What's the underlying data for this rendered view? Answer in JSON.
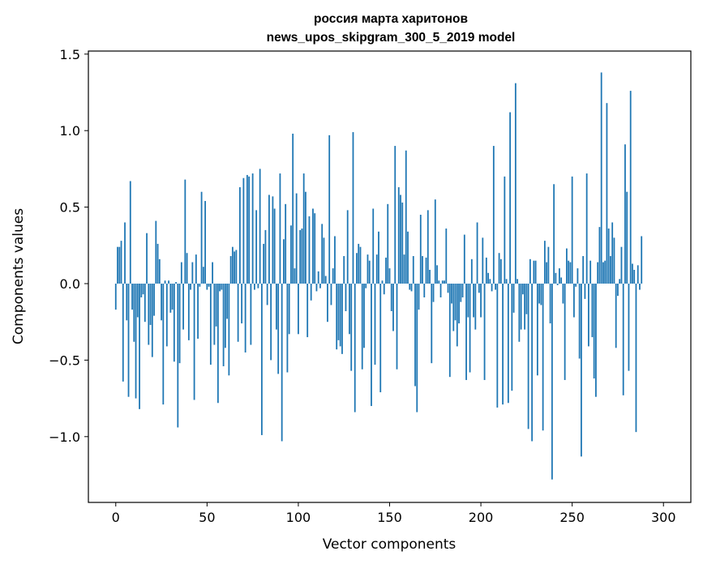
{
  "chart_data": {
    "type": "bar",
    "title": "россия марта харитонов",
    "subtitle": "news_upos_skipgram_300_5_2019 model",
    "xlabel": "Vector components",
    "ylabel": "Components values",
    "xlim": [
      -15,
      315
    ],
    "ylim": [
      -1.43,
      1.52
    ],
    "xticks": [
      0,
      50,
      100,
      150,
      200,
      250,
      300
    ],
    "xtick_labels": [
      "0",
      "50",
      "100",
      "150",
      "200",
      "250",
      "300"
    ],
    "yticks": [
      -1.0,
      -0.5,
      0.0,
      0.5,
      1.0,
      1.5
    ],
    "ytick_labels": [
      "−1.0",
      "−0.5",
      "0.0",
      "0.5",
      "1.0",
      "1.5"
    ],
    "grid": false,
    "bar_color": "#1f77b4",
    "values": [
      -0.17,
      0.24,
      0.24,
      0.28,
      -0.64,
      0.4,
      -0.24,
      -0.74,
      0.67,
      -0.17,
      -0.38,
      -0.75,
      -0.22,
      -0.82,
      -0.09,
      -0.07,
      -0.25,
      0.33,
      -0.4,
      -0.27,
      -0.48,
      -0.21,
      0.41,
      0.26,
      0.16,
      -0.24,
      -0.79,
      0.02,
      -0.41,
      0.02,
      -0.19,
      -0.17,
      -0.51,
      0.01,
      -0.94,
      -0.52,
      0.14,
      -0.3,
      0.68,
      0.2,
      -0.37,
      -0.04,
      0.14,
      -0.76,
      0.19,
      -0.36,
      -0.02,
      0.6,
      0.11,
      0.54,
      -0.04,
      -0.02,
      -0.53,
      0.14,
      -0.4,
      -0.28,
      -0.78,
      -0.05,
      -0.04,
      -0.54,
      -0.42,
      -0.23,
      -0.6,
      0.18,
      0.24,
      0.21,
      0.22,
      -0.38,
      0.63,
      -0.26,
      0.69,
      -0.45,
      0.71,
      0.7,
      -0.4,
      0.72,
      -0.04,
      0.48,
      -0.03,
      0.75,
      -0.99,
      0.26,
      0.35,
      -0.14,
      0.58,
      -0.5,
      0.57,
      0.49,
      -0.3,
      -0.59,
      0.72,
      -1.03,
      0.29,
      0.52,
      -0.58,
      -0.33,
      0.38,
      0.98,
      0.1,
      0.59,
      -0.33,
      0.35,
      0.36,
      0.72,
      0.6,
      -0.35,
      0.44,
      -0.11,
      0.49,
      0.46,
      -0.05,
      0.08,
      -0.03,
      0.39,
      0.3,
      0.05,
      -0.25,
      0.97,
      -0.14,
      0.1,
      0.31,
      -0.43,
      -0.37,
      -0.41,
      -0.46,
      0.18,
      -0.18,
      0.48,
      -0.33,
      -0.57,
      0.99,
      -0.84,
      0.2,
      0.26,
      0.24,
      -0.56,
      -0.42,
      -0.03,
      0.19,
      0.15,
      -0.8,
      0.49,
      -0.53,
      0.19,
      0.34,
      -0.71,
      0.02,
      -0.07,
      0.17,
      0.52,
      0.1,
      -0.18,
      -0.31,
      0.9,
      -0.56,
      0.63,
      0.58,
      0.53,
      0.19,
      0.87,
      0.34,
      -0.04,
      -0.05,
      0.18,
      -0.67,
      -0.84,
      -0.17,
      0.45,
      0.18,
      -0.09,
      0.17,
      0.48,
      0.09,
      -0.52,
      -0.12,
      0.55,
      0.12,
      0.02,
      -0.09,
      0.02,
      0.02,
      0.36,
      -0.06,
      -0.61,
      -0.13,
      -0.31,
      -0.24,
      -0.41,
      -0.26,
      -0.12,
      -0.09,
      0.32,
      -0.63,
      -0.22,
      -0.58,
      0.16,
      -0.22,
      -0.3,
      0.4,
      -0.06,
      -0.22,
      0.3,
      -0.63,
      0.17,
      0.07,
      0.03,
      -0.05,
      0.9,
      -0.04,
      -0.81,
      0.2,
      0.16,
      -0.79,
      0.7,
      0.03,
      -0.78,
      1.12,
      -0.7,
      -0.19,
      1.31,
      0.03,
      -0.38,
      -0.3,
      -0.07,
      -0.3,
      -0.2,
      -0.95,
      0.16,
      -1.03,
      0.15,
      0.15,
      -0.6,
      -0.13,
      -0.14,
      -0.96,
      0.28,
      0.14,
      0.24,
      -0.26,
      -1.28,
      0.65,
      0.07,
      -0.01,
      0.1,
      0.04,
      -0.13,
      -0.63,
      0.23,
      0.15,
      0.14,
      0.7,
      -0.22,
      -0.02,
      0.1,
      -0.49,
      -1.13,
      0.18,
      -0.1,
      0.72,
      -0.41,
      0.15,
      -0.35,
      -0.62,
      -0.74,
      0.14,
      0.37,
      1.38,
      0.14,
      0.15,
      1.18,
      0.36,
      0.18,
      0.4,
      0.3,
      -0.42,
      -0.08,
      0.03,
      0.24,
      -0.73,
      0.91,
      0.6,
      -0.57,
      1.26,
      0.13,
      0.09,
      -0.97,
      0.12,
      -0.04,
      0.31
    ]
  }
}
